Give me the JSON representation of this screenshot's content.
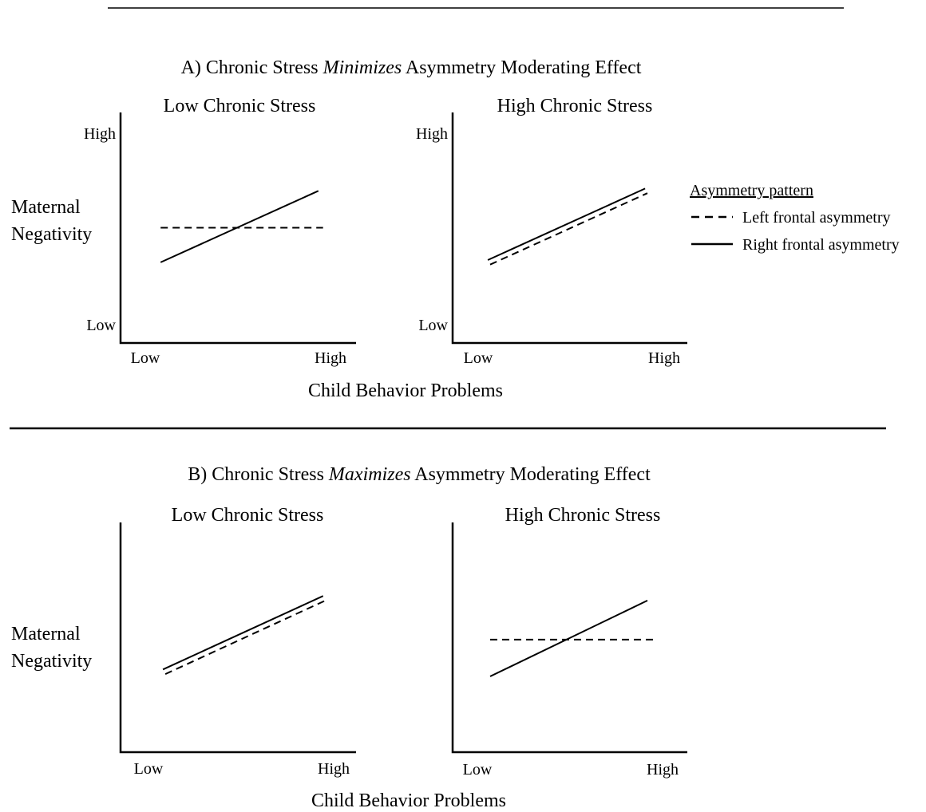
{
  "panel_a": {
    "title_pre": "A) Chronic Stress ",
    "title_em": "Minimizes",
    "title_post": " Asymmetry Moderating Effect",
    "x_axis_title": "Child Behavior Problems",
    "y_axis_title_line1": "Maternal",
    "y_axis_title_line2": "Negativity"
  },
  "panel_b": {
    "title_pre": "B) Chronic Stress ",
    "title_em": "Maximizes",
    "title_post": " Asymmetry Moderating Effect",
    "x_axis_title": "Child Behavior Problems",
    "y_axis_title_line1": "Maternal",
    "y_axis_title_line2": "Negativity"
  },
  "legend": {
    "title": "Asymmetry pattern",
    "items": [
      {
        "label": "Left frontal asymmetry",
        "style": "dashed"
      },
      {
        "label": "Right frontal asymmetry",
        "style": "solid"
      }
    ]
  },
  "chart_data": [
    {
      "type": "line",
      "panel": "A",
      "title": "Low Chronic Stress",
      "x_ticks": [
        "Low",
        "High"
      ],
      "y_ticks": [
        "High",
        "Low"
      ],
      "xlim": [
        0,
        1
      ],
      "ylim": [
        0,
        1
      ],
      "series": [
        {
          "name": "Left frontal asymmetry",
          "style": "dashed",
          "x": [
            0.17,
            0.86
          ],
          "y": [
            0.5,
            0.5
          ]
        },
        {
          "name": "Right frontal asymmetry",
          "style": "solid",
          "x": [
            0.17,
            0.84
          ],
          "y": [
            0.35,
            0.66
          ]
        }
      ]
    },
    {
      "type": "line",
      "panel": "A",
      "title": "High Chronic Stress",
      "x_ticks": [
        "Low",
        "High"
      ],
      "y_ticks": [
        "High",
        "Low"
      ],
      "xlim": [
        0,
        1
      ],
      "ylim": [
        0,
        1
      ],
      "series": [
        {
          "name": "Left frontal asymmetry",
          "style": "dashed",
          "x": [
            0.16,
            0.83
          ],
          "y": [
            0.34,
            0.65
          ]
        },
        {
          "name": "Right frontal asymmetry",
          "style": "solid",
          "x": [
            0.15,
            0.82
          ],
          "y": [
            0.36,
            0.67
          ]
        }
      ]
    },
    {
      "type": "line",
      "panel": "B",
      "title": "Low Chronic Stress",
      "x_ticks": [
        "Low",
        "High"
      ],
      "y_ticks": [],
      "xlim": [
        0,
        1
      ],
      "ylim": [
        0,
        1
      ],
      "series": [
        {
          "name": "Left frontal asymmetry",
          "style": "dashed",
          "x": [
            0.19,
            0.87
          ],
          "y": [
            0.34,
            0.66
          ]
        },
        {
          "name": "Right frontal asymmetry",
          "style": "solid",
          "x": [
            0.18,
            0.86
          ],
          "y": [
            0.36,
            0.68
          ]
        }
      ]
    },
    {
      "type": "line",
      "panel": "B",
      "title": "High Chronic Stress",
      "x_ticks": [
        "Low",
        "High"
      ],
      "y_ticks": [],
      "xlim": [
        0,
        1
      ],
      "ylim": [
        0,
        1
      ],
      "series": [
        {
          "name": "Left frontal asymmetry",
          "style": "dashed",
          "x": [
            0.16,
            0.86
          ],
          "y": [
            0.49,
            0.49
          ]
        },
        {
          "name": "Right frontal asymmetry",
          "style": "solid",
          "x": [
            0.16,
            0.83
          ],
          "y": [
            0.33,
            0.66
          ]
        }
      ]
    }
  ]
}
